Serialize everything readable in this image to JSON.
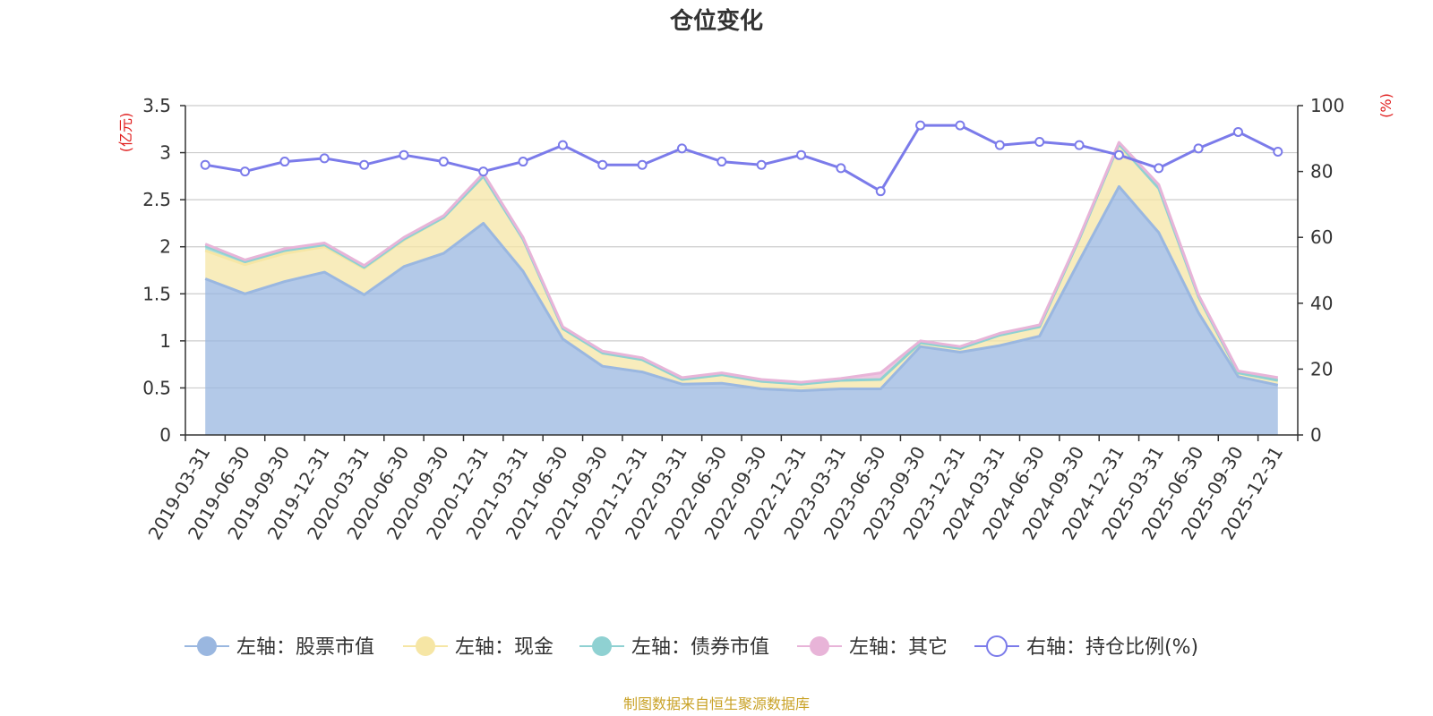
{
  "chart_data": {
    "type": "area",
    "title": "仓位变化",
    "left_unit": "(亿元)",
    "right_unit": "(%)",
    "categories": [
      "2019-03-31",
      "2019-06-30",
      "2019-09-30",
      "2019-12-31",
      "2020-03-31",
      "2020-06-30",
      "2020-09-30",
      "2020-12-31",
      "2021-03-31",
      "2021-06-30",
      "2021-09-30",
      "2021-12-31",
      "2022-03-31",
      "2022-06-30",
      "2022-09-30",
      "2022-12-31",
      "2023-03-31",
      "2023-06-30",
      "2023-09-30",
      "2023-12-31",
      "2024-03-31",
      "2024-06-30",
      "2024-09-30",
      "2024-12-31",
      "2025-03-31",
      "2025-06-30",
      "2025-09-30",
      "2025-12-31"
    ],
    "left_ticks": [
      "0",
      "0.5",
      "1",
      "1.5",
      "2",
      "2.5",
      "3",
      "3.5"
    ],
    "right_ticks": [
      "0",
      "20",
      "40",
      "60",
      "80",
      "100"
    ],
    "ylim_left": [
      0,
      3.5
    ],
    "ylim_right": [
      0,
      100
    ],
    "grid": true,
    "legend_position": "bottom",
    "series": [
      {
        "name": "左轴：股票市值",
        "axis": "left",
        "type": "area",
        "color": "#9ab7e0",
        "values": [
          1.66,
          1.5,
          1.63,
          1.73,
          1.49,
          1.79,
          1.93,
          2.25,
          1.74,
          1.02,
          0.73,
          0.67,
          0.54,
          0.55,
          0.49,
          0.47,
          0.49,
          0.49,
          0.94,
          0.88,
          0.95,
          1.05,
          1.85,
          2.64,
          2.15,
          1.3,
          0.62,
          0.53
        ]
      },
      {
        "name": "左轴：现金",
        "axis": "left",
        "type": "area",
        "color": "#f6e6a5",
        "values": [
          0.3,
          0.31,
          0.3,
          0.27,
          0.28,
          0.28,
          0.38,
          0.5,
          0.34,
          0.11,
          0.14,
          0.13,
          0.05,
          0.09,
          0.08,
          0.07,
          0.09,
          0.1,
          0.04,
          0.04,
          0.11,
          0.1,
          0.23,
          0.45,
          0.47,
          0.17,
          0.04,
          0.05
        ]
      },
      {
        "name": "左轴：债券市值",
        "axis": "left",
        "type": "area",
        "color": "#8fd1d2",
        "values": [
          0.05,
          0.03,
          0.03,
          0.02,
          0.01,
          0.01,
          0.0,
          0.0,
          0.0,
          0.0,
          0.0,
          0.0,
          0.0,
          0.0,
          0.0,
          0.0,
          0.0,
          0.0,
          0.0,
          0.0,
          0.0,
          0.0,
          0.0,
          0.0,
          0.0,
          0.0,
          0.0,
          0.0
        ]
      },
      {
        "name": "左轴：其它",
        "axis": "left",
        "type": "area",
        "color": "#e8b4d8",
        "values": [
          0.02,
          0.02,
          0.02,
          0.02,
          0.02,
          0.02,
          0.02,
          0.03,
          0.02,
          0.02,
          0.02,
          0.02,
          0.02,
          0.02,
          0.02,
          0.02,
          0.02,
          0.07,
          0.02,
          0.02,
          0.02,
          0.02,
          0.02,
          0.02,
          0.04,
          0.02,
          0.02,
          0.03
        ]
      },
      {
        "name": "右轴：持仓比例(%)",
        "axis": "right",
        "type": "line",
        "color": "#7b7bea",
        "values": [
          82,
          80,
          83,
          84,
          82,
          85,
          83,
          80,
          83,
          88,
          82,
          82,
          87,
          83,
          82,
          85,
          81,
          74,
          94,
          94,
          88,
          89,
          88,
          85,
          81,
          87,
          92,
          86
        ]
      }
    ]
  },
  "footer": {
    "source": "制图数据来自恒生聚源数据库"
  }
}
